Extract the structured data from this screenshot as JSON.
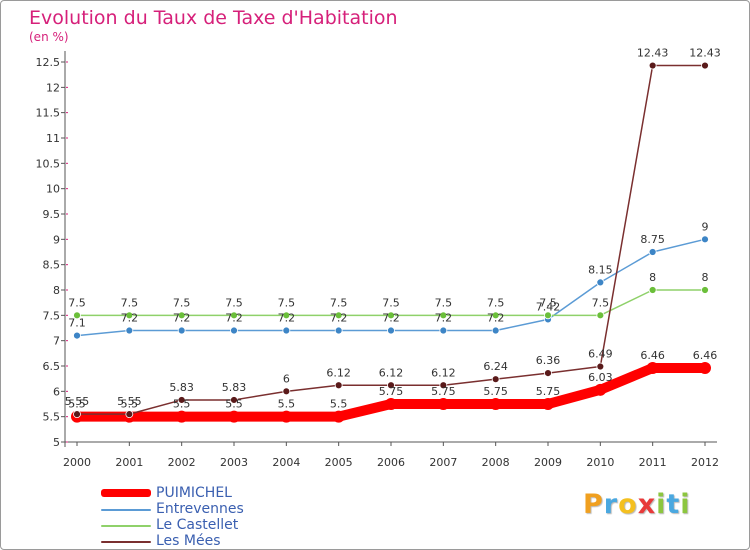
{
  "page_title": "Evolution du Taux de Taxe d'Habitation",
  "unit_label": "(en %)",
  "logo": {
    "text": "Proxiti",
    "letters": [
      {
        "ch": "P",
        "color": "#f0a020"
      },
      {
        "ch": "r",
        "color": "#4aa8e0"
      },
      {
        "ch": "o",
        "color": "#f4c020"
      },
      {
        "ch": "x",
        "color": "#e83a3a"
      },
      {
        "ch": "i",
        "color": "#8cc63f"
      },
      {
        "ch": "t",
        "color": "#4aa8e0"
      },
      {
        "ch": "i",
        "color": "#8cc63f"
      }
    ]
  },
  "colors": {
    "title": "#d6207a",
    "axis": "#555555",
    "grid": "#d6207a",
    "legend_text": "#3a5fb0",
    "background": "#ffffff"
  },
  "chart_data": {
    "type": "line",
    "title": "Evolution du Taux de Taxe d'Habitation",
    "subtitle": "(en %)",
    "xlabel": "",
    "ylabel": "",
    "categories": [
      "2000",
      "2001",
      "2002",
      "2003",
      "2004",
      "2005",
      "2006",
      "2007",
      "2008",
      "2009",
      "2010",
      "2011",
      "2012"
    ],
    "ylim": [
      5,
      12.5
    ],
    "yticks": [
      "5",
      "5.5",
      "6",
      "6.5",
      "7",
      "7.5",
      "8",
      "8.5",
      "9",
      "9.5",
      "10",
      "10.5",
      "11",
      "11.5",
      "12",
      "12.5"
    ],
    "grid": "horizontal dashed ticks on y axis",
    "legend_position": "bottom-left",
    "series": [
      {
        "name": "PUIMICHEL",
        "color": "#ff0000",
        "values": [
          5.5,
          5.5,
          5.5,
          5.5,
          5.5,
          5.5,
          5.75,
          5.75,
          5.75,
          5.75,
          6.03,
          6.46,
          6.46
        ],
        "labels": [
          "5.5",
          "5.5",
          "5.5",
          "5.5",
          "5.5",
          "5.5",
          "5.75",
          "5.75",
          "5.75",
          "5.75",
          "6.03",
          "6.46",
          "6.46"
        ]
      },
      {
        "name": "Entrevennes",
        "color": "#5b9bd5",
        "values": [
          7.1,
          7.2,
          7.2,
          7.2,
          7.2,
          7.2,
          7.2,
          7.2,
          7.2,
          7.42,
          8.15,
          8.75,
          9
        ],
        "labels": [
          "7.1",
          "7.2",
          "7.2",
          "7.2",
          "7.2",
          "7.2",
          "7.2",
          "7.2",
          "7.2",
          "7.42",
          "8.15",
          "8.75",
          "9"
        ]
      },
      {
        "name": "Le Castellet",
        "color": "#8fd16a",
        "values": [
          7.5,
          7.5,
          7.5,
          7.5,
          7.5,
          7.5,
          7.5,
          7.5,
          7.5,
          7.5,
          7.5,
          8,
          8
        ],
        "labels": [
          "7.5",
          "7.5",
          "7.5",
          "7.5",
          "7.5",
          "7.5",
          "7.5",
          "7.5",
          "7.5",
          "7.5",
          "7.5",
          "8",
          "8"
        ]
      },
      {
        "name": "Les Mées",
        "color": "#7a2f2f",
        "values": [
          5.55,
          5.55,
          5.83,
          5.83,
          6,
          6.12,
          6.12,
          6.12,
          6.24,
          6.36,
          6.49,
          12.43,
          12.43
        ],
        "labels": [
          "5.55",
          "5.55",
          "5.83",
          "5.83",
          "6",
          "6.12",
          "6.12",
          "6.12",
          "6.24",
          "6.36",
          "6.49",
          "12.43",
          "12.43"
        ]
      }
    ]
  }
}
